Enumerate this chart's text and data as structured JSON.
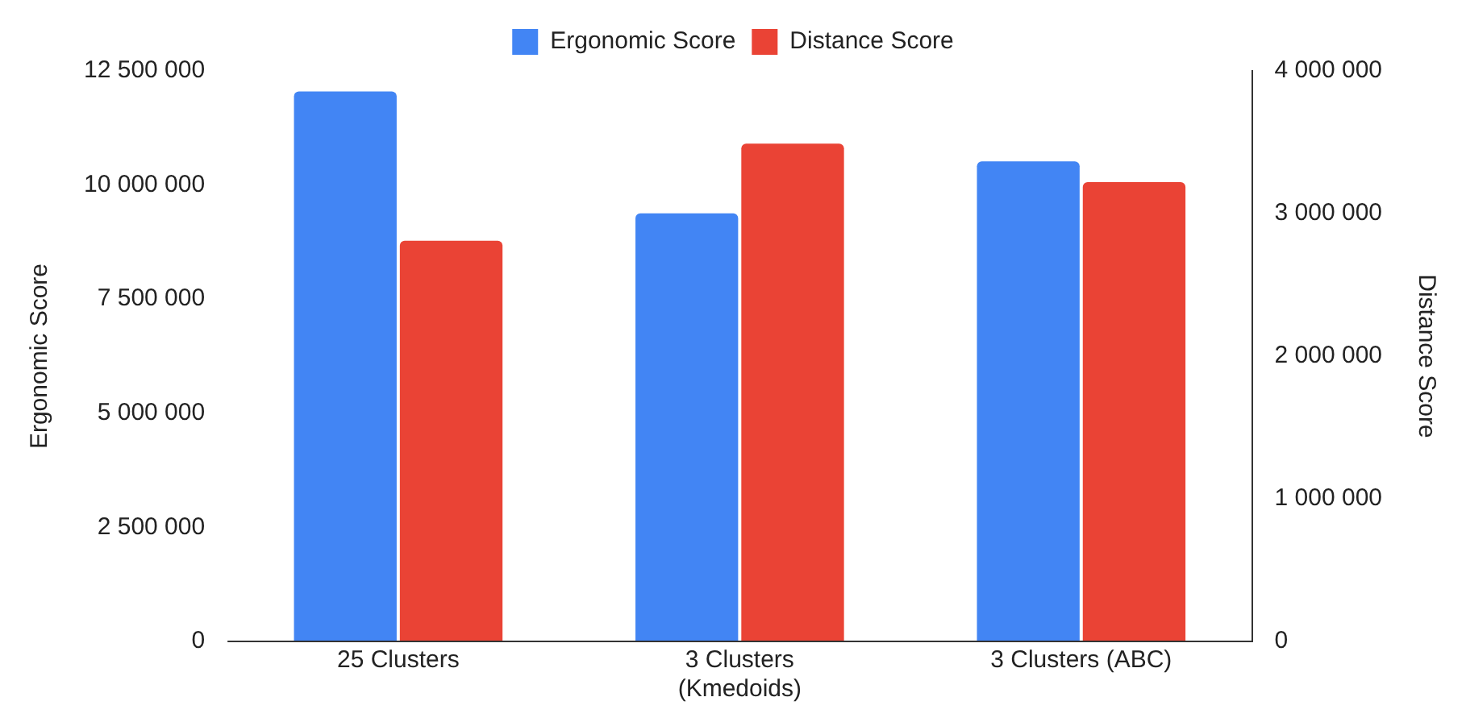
{
  "chart_data": {
    "type": "bar",
    "categories": [
      "25 Clusters",
      "3 Clusters (Kmedoids)",
      "3 Clusters (ABC)"
    ],
    "series": [
      {
        "name": "Ergonomic Score",
        "color": "#4285f4",
        "values": [
          12050000,
          9380000,
          10520000
        ]
      },
      {
        "name": "Distance Score",
        "color": "#ea4335",
        "values": [
          2810000,
          3490000,
          3220000
        ],
        "axis": "y2"
      }
    ],
    "ylabel": "Ergonomic Score",
    "y2label": "Distance Score",
    "ylim": [
      0,
      12500000
    ],
    "yticks": [
      {
        "value": 0,
        "label": "0"
      },
      {
        "value": 2500000,
        "label": "2 500 000"
      },
      {
        "value": 5000000,
        "label": "5 000 000"
      },
      {
        "value": 7500000,
        "label": "7 500 000"
      },
      {
        "value": 10000000,
        "label": "10 000 000"
      },
      {
        "value": 12500000,
        "label": "12 500 000"
      }
    ],
    "y2lim": [
      0,
      4000000
    ],
    "y2ticks": [
      {
        "value": 0,
        "label": "0"
      },
      {
        "value": 1000000,
        "label": "1 000 000"
      },
      {
        "value": 2000000,
        "label": "2 000 000"
      },
      {
        "value": 3000000,
        "label": "3 000 000"
      },
      {
        "value": 4000000,
        "label": "4 000 000"
      }
    ],
    "grid": false,
    "legend": "top"
  }
}
